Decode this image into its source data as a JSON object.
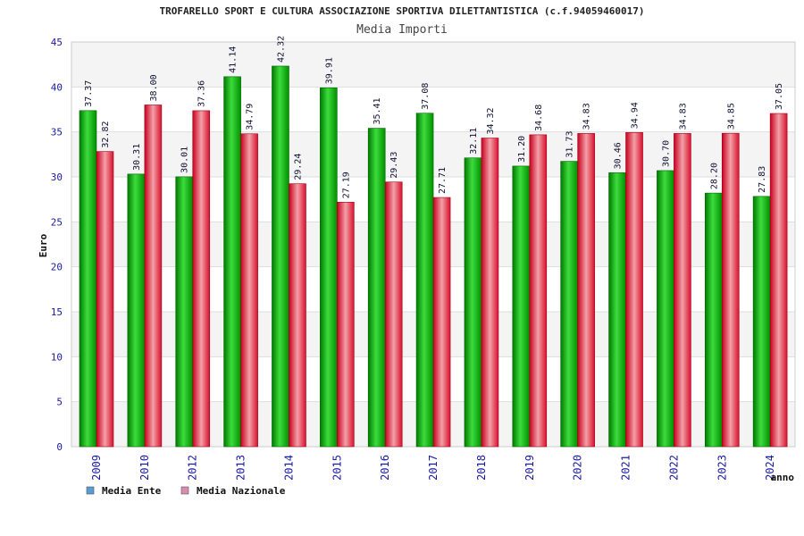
{
  "chart_data": {
    "type": "bar",
    "title": "TROFARELLO SPORT E CULTURA ASSOCIAZIONE SPORTIVA DILETTANTISTICA (c.f.94059460017)",
    "subtitle": "Media Importi",
    "xlabel": "anno",
    "ylabel": "Euro",
    "ylim": [
      0,
      45
    ],
    "yticks": [
      0,
      5,
      10,
      15,
      20,
      25,
      30,
      35,
      40,
      45
    ],
    "grid": true,
    "legend_position": "bottom-left",
    "categories": [
      "2009",
      "2010",
      "2012",
      "2013",
      "2014",
      "2015",
      "2016",
      "2017",
      "2018",
      "2019",
      "2020",
      "2021",
      "2022",
      "2023",
      "2024"
    ],
    "series": [
      {
        "name": "Media Ente",
        "color": "#00b400",
        "legend_color": "#5b9bd5",
        "values": [
          37.37,
          30.31,
          30.01,
          41.14,
          42.32,
          39.91,
          35.41,
          37.08,
          32.11,
          31.2,
          31.73,
          30.46,
          30.7,
          28.2,
          27.83
        ],
        "labels": [
          "37.37",
          "30.31",
          "30.01",
          "41.14",
          "42.32",
          "39.91",
          "35.41",
          "37.08",
          "32.11",
          "31.20",
          "31.73",
          "30.46",
          "30.70",
          "28.20",
          "27.83"
        ]
      },
      {
        "name": "Media Nazionale",
        "color": "#e8293a",
        "legend_color": "#d98cb3",
        "values": [
          32.82,
          38.0,
          37.36,
          34.79,
          29.24,
          27.19,
          29.43,
          27.71,
          34.32,
          34.68,
          34.83,
          34.94,
          34.83,
          34.85,
          37.05
        ],
        "labels": [
          "32.82",
          "38.00",
          "37.36",
          "34.79",
          "29.24",
          "27.19",
          "29.43",
          "27.71",
          "34.32",
          "34.68",
          "34.83",
          "34.94",
          "34.83",
          "34.85",
          "37.05"
        ]
      }
    ]
  }
}
